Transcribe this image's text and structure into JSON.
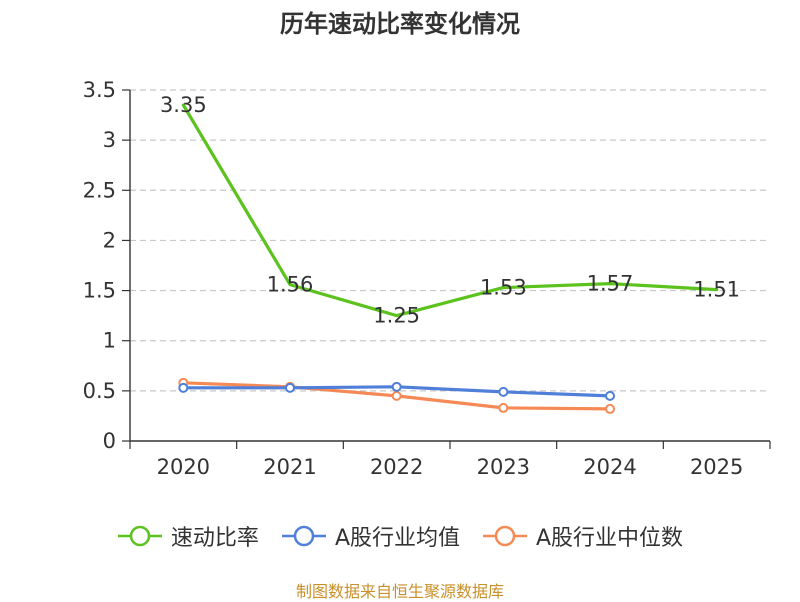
{
  "colors": {
    "series_speed": "#5bc21e",
    "series_avg": "#4f7fd8",
    "series_median": "#f58a56",
    "grid": "#c8c8c8",
    "axis": "#333333",
    "text": "#333333",
    "source": "#c8902a"
  },
  "source_text": "制图数据来自恒生聚源数据库",
  "chart_data": {
    "type": "line",
    "title": "历年速动比率变化情况",
    "categories": [
      "2020",
      "2021",
      "2022",
      "2023",
      "2024",
      "2025"
    ],
    "ylim": [
      0,
      3.5
    ],
    "yticks": [
      "0",
      "0.5",
      "1",
      "1.5",
      "2",
      "2.5",
      "3",
      "3.5"
    ],
    "grid": true,
    "legend_position": "bottom",
    "series": [
      {
        "name": "速动比率",
        "color": "#5bc21e",
        "values": [
          3.35,
          1.56,
          1.25,
          1.53,
          1.57,
          1.51
        ],
        "labels": [
          "3.35",
          "1.56",
          "1.25",
          "1.53",
          "1.57",
          "1.51"
        ],
        "show_labels": true
      },
      {
        "name": "A股行业均值",
        "color": "#4f7fd8",
        "values": [
          0.53,
          0.53,
          0.54,
          0.49,
          0.45,
          null
        ],
        "show_labels": false
      },
      {
        "name": "A股行业中位数",
        "color": "#f58a56",
        "values": [
          0.58,
          0.54,
          0.45,
          0.33,
          0.32,
          null
        ],
        "show_labels": false
      }
    ]
  }
}
